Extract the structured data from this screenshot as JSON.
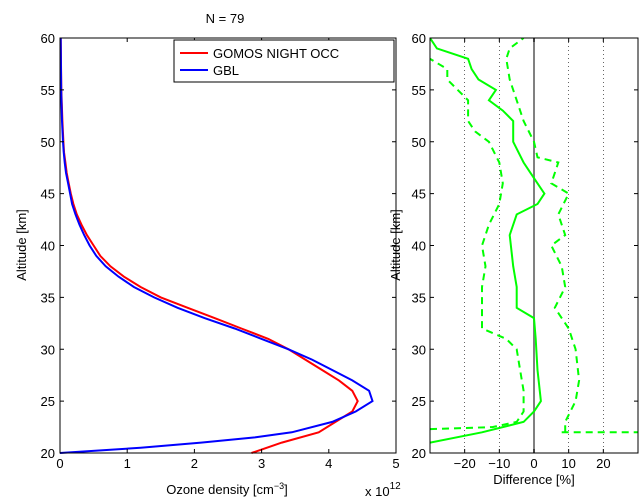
{
  "title": "N = 79",
  "chart_data": [
    {
      "type": "line",
      "xlabel": "Ozone density [cm",
      "xlabel_sup": "−3",
      "xlabel_close": "]",
      "x_multiplier": "x 10",
      "x_multiplier_exp": "12",
      "ylabel": "Altitude [km]",
      "xlim": [
        0,
        5
      ],
      "ylim": [
        20,
        60
      ],
      "xticks": [
        0,
        1,
        2,
        3,
        4,
        5
      ],
      "yticks": [
        20,
        25,
        30,
        35,
        40,
        45,
        50,
        55,
        60
      ],
      "legend_position": "top-right",
      "series": [
        {
          "name": "GOMOS NIGHT OCC",
          "color": "#ff0000",
          "points": [
            [
              2.85,
              20
            ],
            [
              3.3,
              21
            ],
            [
              3.85,
              22
            ],
            [
              4.1,
              23
            ],
            [
              4.35,
              24
            ],
            [
              4.43,
              25
            ],
            [
              4.35,
              26
            ],
            [
              4.15,
              27
            ],
            [
              3.9,
              28
            ],
            [
              3.65,
              29
            ],
            [
              3.4,
              30
            ],
            [
              3.1,
              31
            ],
            [
              2.7,
              32
            ],
            [
              2.3,
              33
            ],
            [
              1.9,
              34
            ],
            [
              1.5,
              35
            ],
            [
              1.2,
              36
            ],
            [
              0.95,
              37
            ],
            [
              0.75,
              38
            ],
            [
              0.6,
              39
            ],
            [
              0.5,
              40
            ],
            [
              0.4,
              41
            ],
            [
              0.32,
              42
            ],
            [
              0.25,
              43
            ],
            [
              0.2,
              44
            ],
            [
              0.16,
              45
            ],
            [
              0.13,
              46
            ],
            [
              0.1,
              47
            ],
            [
              0.08,
              48
            ],
            [
              0.06,
              49
            ],
            [
              0.05,
              50
            ],
            [
              0.035,
              52
            ],
            [
              0.02,
              55
            ],
            [
              0.01,
              60
            ]
          ]
        },
        {
          "name": "GBL",
          "color": "#0000ff",
          "points": [
            [
              0.0,
              20
            ],
            [
              1.2,
              20.5
            ],
            [
              2.1,
              21
            ],
            [
              2.9,
              21.5
            ],
            [
              3.45,
              22
            ],
            [
              4.05,
              23
            ],
            [
              4.4,
              24
            ],
            [
              4.65,
              25
            ],
            [
              4.6,
              26
            ],
            [
              4.35,
              27
            ],
            [
              4.05,
              28
            ],
            [
              3.75,
              29
            ],
            [
              3.4,
              30
            ],
            [
              3.0,
              31
            ],
            [
              2.6,
              32
            ],
            [
              2.15,
              33
            ],
            [
              1.75,
              34
            ],
            [
              1.4,
              35
            ],
            [
              1.1,
              36
            ],
            [
              0.87,
              37
            ],
            [
              0.68,
              38
            ],
            [
              0.54,
              39
            ],
            [
              0.44,
              40
            ],
            [
              0.36,
              41
            ],
            [
              0.29,
              42
            ],
            [
              0.23,
              43
            ],
            [
              0.18,
              44
            ],
            [
              0.15,
              45
            ],
            [
              0.12,
              46
            ],
            [
              0.09,
              47
            ],
            [
              0.07,
              48
            ],
            [
              0.055,
              49
            ],
            [
              0.045,
              50
            ],
            [
              0.03,
              52
            ],
            [
              0.018,
              55
            ],
            [
              0.01,
              60
            ]
          ]
        }
      ]
    },
    {
      "type": "line",
      "xlabel": "Difference [%]",
      "ylabel": "Altitude [km]",
      "xlim": [
        -30,
        30
      ],
      "ylim": [
        20,
        60
      ],
      "xticks": [
        -20,
        -10,
        0,
        10,
        20
      ],
      "xtick_labels": [
        "−20",
        "−10",
        "0",
        "10",
        "20"
      ],
      "yticks": [
        20,
        25,
        30,
        35,
        40,
        45,
        50,
        55,
        60
      ],
      "grid_x": [
        -20,
        -10,
        10,
        20
      ],
      "zero_line_color": "#808080",
      "series": [
        {
          "style": "solid",
          "color": "#00ff00",
          "points": [
            [
              -30,
              21
            ],
            [
              -15,
              22
            ],
            [
              -3,
              23
            ],
            [
              0,
              24
            ],
            [
              2,
              25
            ],
            [
              1,
              28
            ],
            [
              0.5,
              31
            ],
            [
              0,
              33
            ],
            [
              -5,
              34
            ],
            [
              -5,
              36
            ],
            [
              -6,
              38
            ],
            [
              -7,
              41
            ],
            [
              -5,
              43
            ],
            [
              1,
              44
            ],
            [
              3,
              45
            ],
            [
              -1,
              47
            ],
            [
              -3,
              48
            ],
            [
              -6,
              50
            ],
            [
              -6,
              51
            ],
            [
              -6,
              52
            ],
            [
              -9,
              53
            ],
            [
              -13,
              54
            ],
            [
              -11,
              55
            ],
            [
              -16,
              56
            ],
            [
              -18,
              57
            ],
            [
              -19,
              58
            ],
            [
              -28,
              59
            ],
            [
              -30,
              60
            ]
          ]
        },
        {
          "style": "dashed",
          "color": "#00ff00",
          "points": [
            [
              -30,
              22.3
            ],
            [
              -12,
              22.5
            ],
            [
              -5,
              23
            ],
            [
              -3,
              24
            ],
            [
              -3,
              26
            ],
            [
              -4,
              28
            ],
            [
              -5,
              30
            ],
            [
              -8,
              31
            ],
            [
              -15,
              32
            ],
            [
              -15,
              34
            ],
            [
              -15,
              36
            ],
            [
              -14,
              38
            ],
            [
              -15,
              40
            ],
            [
              -13,
              42
            ],
            [
              -10,
              44
            ],
            [
              -9,
              46
            ],
            [
              -10,
              48
            ],
            [
              -13,
              50
            ],
            [
              -17,
              51
            ],
            [
              -19,
              52
            ],
            [
              -19,
              54
            ],
            [
              -22,
              55
            ],
            [
              -25,
              56
            ],
            [
              -25,
              57
            ],
            [
              -30,
              58
            ]
          ]
        },
        {
          "style": "dashed",
          "color": "#00ff00",
          "points": [
            [
              9,
              22
            ],
            [
              9,
              23
            ],
            [
              12,
              25
            ],
            [
              13,
              27
            ],
            [
              12,
              30
            ],
            [
              10,
              32
            ],
            [
              6,
              34
            ],
            [
              9,
              36
            ],
            [
              8,
              38
            ],
            [
              5,
              40
            ],
            [
              9,
              41
            ],
            [
              7,
              43
            ],
            [
              10,
              45
            ],
            [
              5,
              46
            ],
            [
              7,
              48
            ],
            [
              1,
              48.5
            ],
            [
              0,
              50
            ],
            [
              -3,
              52
            ],
            [
              -5,
              54
            ],
            [
              -7,
              56
            ],
            [
              -8,
              58
            ],
            [
              -7,
              59
            ],
            [
              -3,
              60
            ]
          ]
        },
        {
          "style": "dashed",
          "color": "#00ff00",
          "points": [
            [
              8,
              22
            ],
            [
              30,
              22
            ]
          ]
        }
      ]
    }
  ]
}
